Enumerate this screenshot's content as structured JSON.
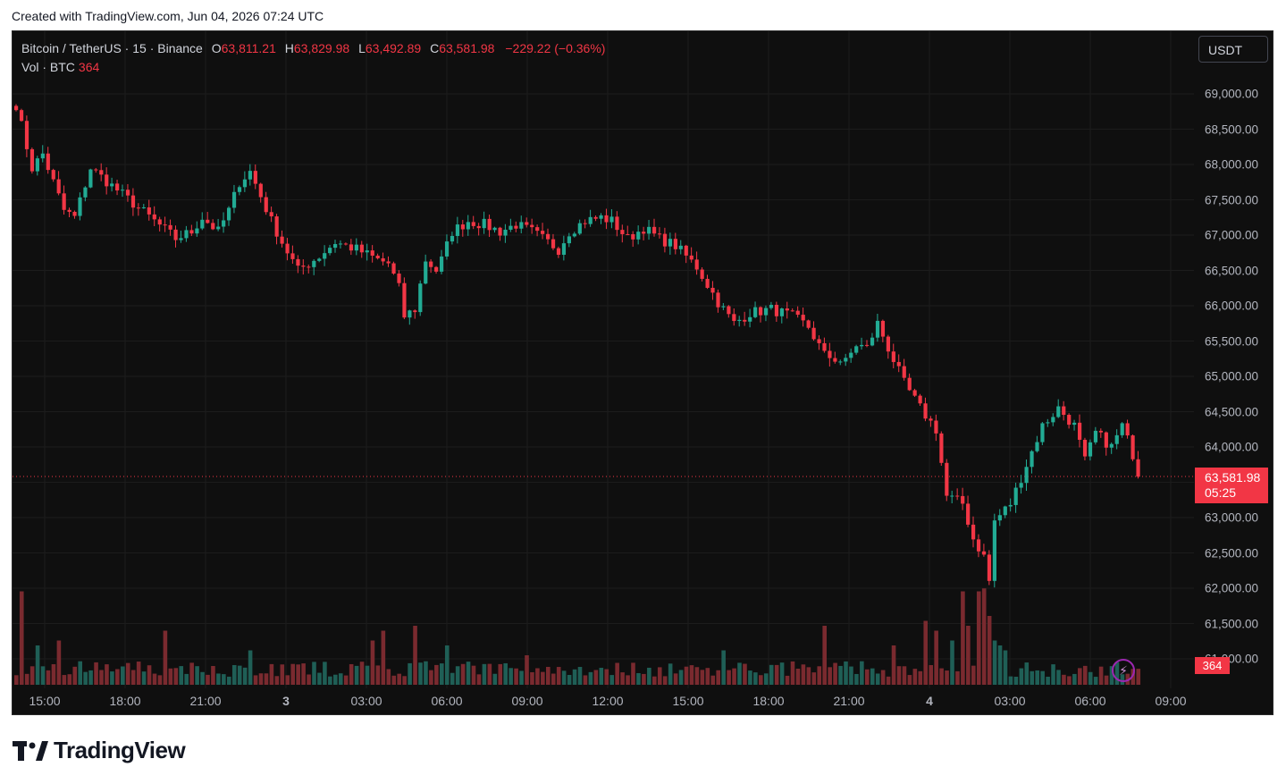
{
  "header": {
    "created_text": "Created with TradingView.com, Jun 04, 2026 07:24 UTC"
  },
  "legend": {
    "symbol": "Bitcoin / TetherUS · 15 · Binance",
    "open_label": "O",
    "open": "63,811.21",
    "high_label": "H",
    "high": "63,829.98",
    "low_label": "L",
    "low": "63,492.89",
    "close_label": "C",
    "close": "63,581.98",
    "change": "−229.22 (−0.36%)",
    "vol_label": "Vol · BTC",
    "vol_value": "364"
  },
  "currency_button": "USDT",
  "price_tag": {
    "price": "63,581.98",
    "countdown": "05:25"
  },
  "volume_tag": "364",
  "brand": {
    "name": "TradingView"
  },
  "colors": {
    "up": "#22ab94",
    "down": "#f23645",
    "background": "#0f0f0f",
    "vol_up": "#1f5f56",
    "vol_down": "#7a2a2f"
  },
  "icons": {
    "alert": "lightning-bolt-icon",
    "logo": "tradingview-logo-icon"
  },
  "chart_data": {
    "type": "candlestick",
    "timeframe": "15",
    "ylim": [
      60750,
      69400
    ],
    "y_ticks": [
      "69,000.00",
      "68,500.00",
      "68,000.00",
      "67,500.00",
      "67,000.00",
      "66,500.00",
      "66,000.00",
      "65,500.00",
      "65,000.00",
      "64,500.00",
      "64,000.00",
      "63,000.00",
      "62,500.00",
      "62,000.00",
      "61,500.00",
      "61,000.00"
    ],
    "x_ticks": [
      "15:00",
      "18:00",
      "21:00",
      "3",
      "03:00",
      "06:00",
      "09:00",
      "12:00",
      "15:00",
      "18:00",
      "21:00",
      "4",
      "03:00",
      "06:00",
      "09:00"
    ],
    "last_price": 63581.98,
    "waypoints": [
      [
        0,
        68850
      ],
      [
        3,
        67950
      ],
      [
        5,
        68150
      ],
      [
        9,
        67350
      ],
      [
        11,
        67250
      ],
      [
        14,
        67950
      ],
      [
        18,
        67700
      ],
      [
        22,
        67450
      ],
      [
        26,
        67200
      ],
      [
        30,
        66950
      ],
      [
        33,
        67050
      ],
      [
        35,
        67250
      ],
      [
        38,
        67050
      ],
      [
        40,
        67350
      ],
      [
        42,
        67750
      ],
      [
        44,
        67900
      ],
      [
        46,
        67550
      ],
      [
        48,
        67200
      ],
      [
        50,
        66900
      ],
      [
        53,
        66500
      ],
      [
        57,
        66700
      ],
      [
        60,
        66900
      ],
      [
        64,
        66800
      ],
      [
        68,
        66650
      ],
      [
        70,
        66600
      ],
      [
        72,
        66250
      ],
      [
        73,
        65850
      ],
      [
        75,
        65950
      ],
      [
        77,
        66650
      ],
      [
        79,
        66500
      ],
      [
        80,
        66650
      ],
      [
        82,
        67050
      ],
      [
        85,
        67200
      ],
      [
        88,
        67150
      ],
      [
        91,
        67050
      ],
      [
        94,
        67150
      ],
      [
        97,
        67050
      ],
      [
        100,
        66900
      ],
      [
        102,
        66800
      ],
      [
        104,
        67050
      ],
      [
        107,
        67200
      ],
      [
        110,
        67250
      ],
      [
        112,
        67200
      ],
      [
        115,
        66950
      ],
      [
        118,
        67100
      ],
      [
        121,
        66950
      ],
      [
        124,
        66850
      ],
      [
        128,
        66550
      ],
      [
        132,
        66050
      ],
      [
        135,
        65750
      ],
      [
        138,
        65900
      ],
      [
        142,
        65950
      ],
      [
        146,
        65850
      ],
      [
        149,
        65700
      ],
      [
        152,
        65300
      ],
      [
        156,
        65200
      ],
      [
        158,
        65450
      ],
      [
        160,
        65400
      ],
      [
        162,
        65750
      ],
      [
        164,
        65400
      ],
      [
        167,
        64900
      ],
      [
        170,
        64550
      ],
      [
        173,
        64250
      ],
      [
        175,
        63300
      ],
      [
        178,
        63200
      ],
      [
        180,
        62700
      ],
      [
        182,
        62450
      ],
      [
        183,
        62100
      ],
      [
        184,
        62950
      ],
      [
        187,
        63200
      ],
      [
        190,
        63750
      ],
      [
        193,
        64300
      ],
      [
        196,
        64550
      ],
      [
        199,
        64300
      ],
      [
        201,
        63800
      ],
      [
        203,
        64200
      ],
      [
        206,
        64000
      ],
      [
        208,
        64300
      ],
      [
        210,
        63900
      ],
      [
        211,
        63580
      ]
    ],
    "volume_spikes": [
      [
        1,
        0.95
      ],
      [
        4,
        0.4
      ],
      [
        8,
        0.45
      ],
      [
        28,
        0.55
      ],
      [
        44,
        0.35
      ],
      [
        67,
        0.45
      ],
      [
        69,
        0.55
      ],
      [
        75,
        0.6
      ],
      [
        81,
        0.4
      ],
      [
        96,
        0.3
      ],
      [
        133,
        0.35
      ],
      [
        152,
        0.6
      ],
      [
        165,
        0.4
      ],
      [
        171,
        0.65
      ],
      [
        173,
        0.55
      ],
      [
        176,
        0.45
      ],
      [
        178,
        0.95
      ],
      [
        179,
        0.6
      ],
      [
        181,
        0.95
      ],
      [
        182,
        0.98
      ],
      [
        183,
        0.7
      ],
      [
        184,
        0.45
      ],
      [
        185,
        0.4
      ],
      [
        186,
        0.35
      ]
    ]
  }
}
